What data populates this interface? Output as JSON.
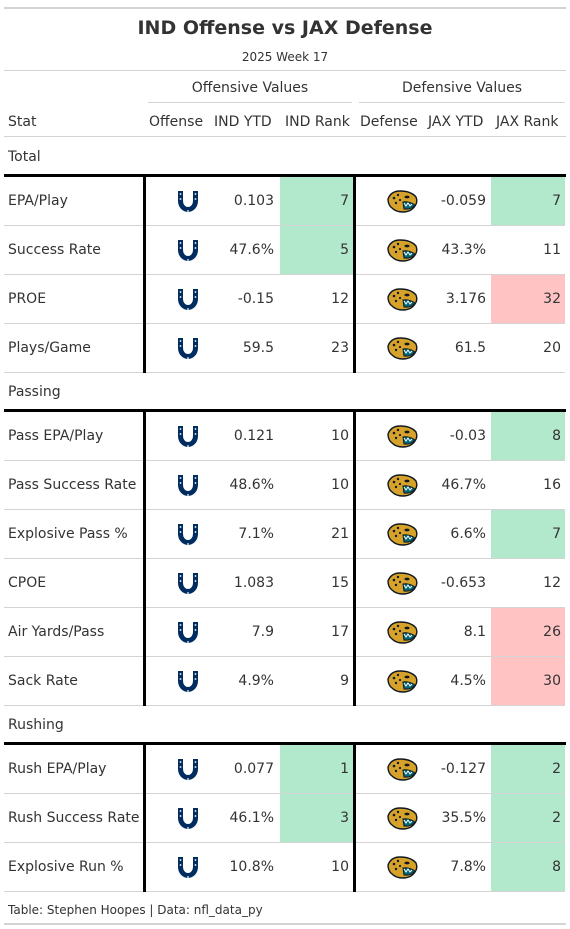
{
  "title": "IND Offense vs JAX Defense",
  "subtitle": "2025 Week 17",
  "spanners": {
    "offense": "Offensive Values",
    "defense": "Defensive Values"
  },
  "columns": {
    "stat": "Stat",
    "offense": "Offense",
    "off_ytd": "IND YTD",
    "off_rank": "IND Rank",
    "defense": "Defense",
    "def_ytd": "JAX YTD",
    "def_rank": "JAX Rank"
  },
  "colors": {
    "good": "#b2e9cd",
    "bad": "#ffc3c3",
    "colts_blue": "#002c5f",
    "jaguars_gold": "#d7a22a",
    "jaguars_teal": "#006778"
  },
  "icons": {
    "offense": "colts-horseshoe-logo-icon",
    "defense": "jaguars-head-logo-icon"
  },
  "groups": [
    {
      "label": "Total",
      "rows": [
        {
          "stat": "EPA/Play",
          "off_ytd": "0.103",
          "off_rank": "7",
          "off_rank_color": "good",
          "def_ytd": "-0.059",
          "def_rank": "7",
          "def_rank_color": "good"
        },
        {
          "stat": "Success Rate",
          "off_ytd": "47.6%",
          "off_rank": "5",
          "off_rank_color": "good",
          "def_ytd": "43.3%",
          "def_rank": "11",
          "def_rank_color": ""
        },
        {
          "stat": "PROE",
          "off_ytd": "-0.15",
          "off_rank": "12",
          "off_rank_color": "",
          "def_ytd": "3.176",
          "def_rank": "32",
          "def_rank_color": "bad"
        },
        {
          "stat": "Plays/Game",
          "off_ytd": "59.5",
          "off_rank": "23",
          "off_rank_color": "",
          "def_ytd": "61.5",
          "def_rank": "20",
          "def_rank_color": ""
        }
      ]
    },
    {
      "label": "Passing",
      "rows": [
        {
          "stat": "Pass EPA/Play",
          "off_ytd": "0.121",
          "off_rank": "10",
          "off_rank_color": "",
          "def_ytd": "-0.03",
          "def_rank": "8",
          "def_rank_color": "good"
        },
        {
          "stat": "Pass Success Rate",
          "off_ytd": "48.6%",
          "off_rank": "10",
          "off_rank_color": "",
          "def_ytd": "46.7%",
          "def_rank": "16",
          "def_rank_color": ""
        },
        {
          "stat": "Explosive Pass %",
          "off_ytd": "7.1%",
          "off_rank": "21",
          "off_rank_color": "",
          "def_ytd": "6.6%",
          "def_rank": "7",
          "def_rank_color": "good"
        },
        {
          "stat": "CPOE",
          "off_ytd": "1.083",
          "off_rank": "15",
          "off_rank_color": "",
          "def_ytd": "-0.653",
          "def_rank": "12",
          "def_rank_color": ""
        },
        {
          "stat": "Air Yards/Pass",
          "off_ytd": "7.9",
          "off_rank": "17",
          "off_rank_color": "",
          "def_ytd": "8.1",
          "def_rank": "26",
          "def_rank_color": "bad"
        },
        {
          "stat": "Sack Rate",
          "off_ytd": "4.9%",
          "off_rank": "9",
          "off_rank_color": "",
          "def_ytd": "4.5%",
          "def_rank": "30",
          "def_rank_color": "bad"
        }
      ]
    },
    {
      "label": "Rushing",
      "rows": [
        {
          "stat": "Rush EPA/Play",
          "off_ytd": "0.077",
          "off_rank": "1",
          "off_rank_color": "good",
          "def_ytd": "-0.127",
          "def_rank": "2",
          "def_rank_color": "good"
        },
        {
          "stat": "Rush Success Rate",
          "off_ytd": "46.1%",
          "off_rank": "3",
          "off_rank_color": "good",
          "def_ytd": "35.5%",
          "def_rank": "2",
          "def_rank_color": "good"
        },
        {
          "stat": "Explosive Run %",
          "off_ytd": "10.8%",
          "off_rank": "10",
          "off_rank_color": "",
          "def_ytd": "7.8%",
          "def_rank": "8",
          "def_rank_color": "good"
        }
      ]
    }
  ],
  "footer": "Table: Stephen Hoopes | Data: nfl_data_py"
}
